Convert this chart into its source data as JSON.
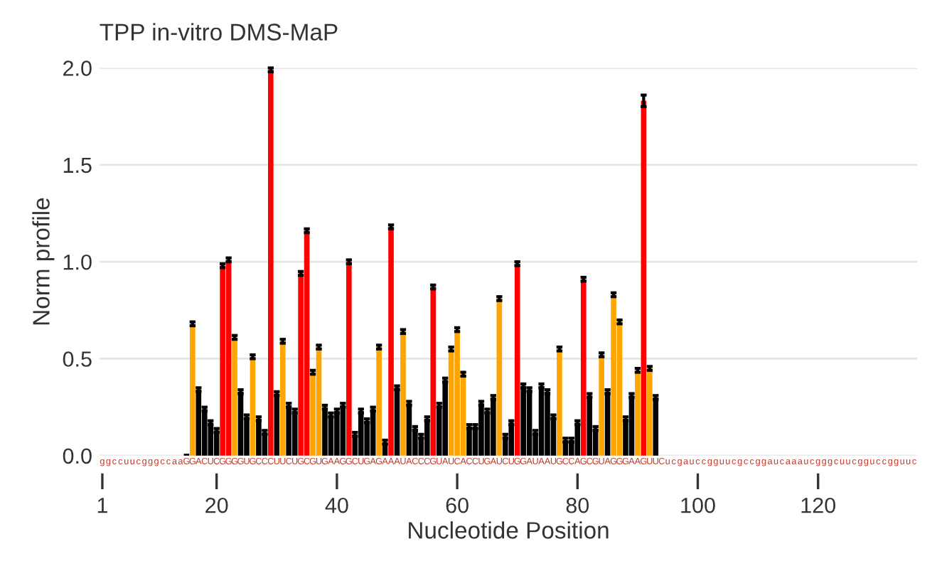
{
  "chart_data": {
    "type": "bar",
    "title": "TPP in-vitro DMS-MaP",
    "x2label": "Nucleotide Position",
    "ylabel": "Norm profile",
    "categories": [
      "g",
      "g",
      "c",
      "c",
      "u",
      "u",
      "c",
      "g",
      "g",
      "g",
      "c",
      "c",
      "a",
      "a",
      "G",
      "G",
      "A",
      "C",
      "U",
      "C",
      "G",
      "G",
      "G",
      "G",
      "U",
      "G",
      "C",
      "C",
      "C",
      "U",
      "U",
      "C",
      "U",
      "G",
      "C",
      "G",
      "U",
      "G",
      "A",
      "A",
      "G",
      "G",
      "C",
      "U",
      "G",
      "A",
      "G",
      "A",
      "A",
      "A",
      "U",
      "A",
      "C",
      "C",
      "C",
      "G",
      "U",
      "A",
      "U",
      "C",
      "A",
      "C",
      "C",
      "U",
      "G",
      "A",
      "U",
      "C",
      "U",
      "G",
      "G",
      "A",
      "U",
      "A",
      "A",
      "U",
      "G",
      "C",
      "C",
      "A",
      "G",
      "C",
      "G",
      "U",
      "A",
      "G",
      "G",
      "G",
      "A",
      "A",
      "G",
      "U",
      "U",
      "C",
      "u",
      "c",
      "g",
      "a",
      "u",
      "c",
      "c",
      "g",
      "g",
      "u",
      "u",
      "c",
      "g",
      "c",
      "c",
      "g",
      "g",
      "a",
      "u",
      "c",
      "a",
      "a",
      "a",
      "u",
      "c",
      "g",
      "g",
      "g",
      "c",
      "u",
      "u",
      "c",
      "g",
      "g",
      "u",
      "c",
      "c",
      "g",
      "g",
      "u",
      "u",
      "c"
    ],
    "values": [
      null,
      null,
      null,
      null,
      null,
      null,
      null,
      null,
      null,
      null,
      null,
      null,
      null,
      null,
      0.01,
      0.68,
      0.34,
      0.24,
      0.17,
      0.13,
      0.98,
      1.01,
      0.61,
      0.33,
      0.2,
      0.51,
      0.19,
      0.12,
      1.99,
      0.32,
      0.59,
      0.26,
      0.23,
      0.94,
      1.16,
      0.43,
      0.56,
      0.25,
      0.21,
      0.23,
      0.26,
      1.0,
      0.11,
      0.23,
      0.18,
      0.24,
      0.56,
      0.07,
      1.18,
      0.35,
      0.64,
      0.27,
      0.14,
      0.1,
      0.19,
      0.87,
      0.26,
      0.39,
      0.55,
      0.65,
      0.42,
      0.15,
      0.15,
      0.27,
      0.23,
      0.3,
      0.81,
      0.1,
      0.17,
      0.99,
      0.36,
      0.34,
      0.12,
      0.36,
      0.33,
      0.2,
      0.55,
      0.08,
      0.08,
      0.17,
      0.91,
      0.31,
      0.14,
      0.52,
      0.33,
      0.83,
      0.69,
      0.19,
      0.31,
      0.44,
      1.83,
      0.45,
      0.3,
      null,
      null,
      null,
      null,
      null,
      null,
      null,
      null,
      null,
      null,
      null,
      null,
      null,
      null,
      null,
      null,
      null,
      null,
      null,
      null,
      null,
      null,
      null,
      null,
      null,
      null,
      null,
      null,
      null,
      null,
      null,
      null,
      null,
      null,
      null,
      null,
      null,
      null,
      null,
      null,
      null,
      null,
      null
    ],
    "errors": [
      null,
      null,
      null,
      null,
      null,
      null,
      null,
      null,
      null,
      null,
      null,
      null,
      null,
      null,
      null,
      0.01,
      0.01,
      0.01,
      0.01,
      0.01,
      0.01,
      0.01,
      0.01,
      0.01,
      0.01,
      0.01,
      0.01,
      0.01,
      0.01,
      0.01,
      0.01,
      0.01,
      0.01,
      0.01,
      0.01,
      0.01,
      0.01,
      0.01,
      0.01,
      0.01,
      0.01,
      0.01,
      0.01,
      0.01,
      0.01,
      0.01,
      0.01,
      0.01,
      0.01,
      0.01,
      0.01,
      0.01,
      0.01,
      0.01,
      0.01,
      0.01,
      0.01,
      0.01,
      0.01,
      0.01,
      0.01,
      0.01,
      0.01,
      0.01,
      0.01,
      0.01,
      0.01,
      0.01,
      0.01,
      0.01,
      0.01,
      0.01,
      0.01,
      0.01,
      0.01,
      0.01,
      0.01,
      0.01,
      0.01,
      0.01,
      0.01,
      0.01,
      0.01,
      0.01,
      0.01,
      0.01,
      0.01,
      0.01,
      0.01,
      0.01,
      0.03,
      0.01,
      0.01,
      null,
      null,
      null,
      null,
      null,
      null,
      null,
      null,
      null,
      null,
      null,
      null,
      null,
      null,
      null,
      null,
      null,
      null,
      null,
      null,
      null,
      null,
      null,
      null,
      null,
      null,
      null,
      null,
      null,
      null,
      null,
      null,
      null,
      null,
      null,
      null,
      null,
      null,
      null,
      null,
      null,
      null,
      null
    ],
    "colors": [
      "#000000",
      "#000000",
      "#000000",
      "#000000",
      "#000000",
      "#000000",
      "#000000",
      "#000000",
      "#000000",
      "#000000",
      "#000000",
      "#000000",
      "#000000",
      "#000000",
      "#000000",
      "#ffa500",
      "#000000",
      "#000000",
      "#000000",
      "#000000",
      "#ff0000",
      "#ff0000",
      "#ffa500",
      "#000000",
      "#000000",
      "#ffa500",
      "#000000",
      "#000000",
      "#ff0000",
      "#000000",
      "#ffa500",
      "#000000",
      "#000000",
      "#ff0000",
      "#ff0000",
      "#ffa500",
      "#ffa500",
      "#000000",
      "#000000",
      "#000000",
      "#000000",
      "#ff0000",
      "#000000",
      "#000000",
      "#000000",
      "#000000",
      "#ffa500",
      "#000000",
      "#ff0000",
      "#000000",
      "#ffa500",
      "#000000",
      "#000000",
      "#000000",
      "#000000",
      "#ff0000",
      "#000000",
      "#000000",
      "#ffa500",
      "#ffa500",
      "#ffa500",
      "#000000",
      "#000000",
      "#000000",
      "#000000",
      "#000000",
      "#ffa500",
      "#000000",
      "#000000",
      "#ff0000",
      "#000000",
      "#000000",
      "#000000",
      "#000000",
      "#000000",
      "#000000",
      "#ffa500",
      "#000000",
      "#000000",
      "#000000",
      "#ff0000",
      "#000000",
      "#000000",
      "#ffa500",
      "#000000",
      "#ffa500",
      "#ffa500",
      "#000000",
      "#000000",
      "#ffa500",
      "#ff0000",
      "#ffa500",
      "#000000",
      "#000000",
      "#000000",
      "#000000",
      "#000000",
      "#000000",
      "#000000",
      "#000000",
      "#000000",
      "#000000",
      "#000000",
      "#000000",
      "#000000",
      "#000000",
      "#000000",
      "#000000",
      "#000000",
      "#000000",
      "#000000",
      "#000000",
      "#000000",
      "#000000",
      "#000000",
      "#000000",
      "#000000",
      "#000000",
      "#000000",
      "#000000",
      "#000000",
      "#000000",
      "#000000",
      "#000000",
      "#000000",
      "#000000",
      "#000000",
      "#000000",
      "#000000",
      "#000000",
      "#000000",
      "#000000",
      "#000000",
      "#000000",
      "#000000",
      "#000000"
    ],
    "x2lim": [
      0.5,
      136.5
    ],
    "x2ticks": [
      1,
      20,
      40,
      60,
      80,
      100,
      120
    ],
    "ylim": [
      0,
      2.0
    ],
    "yticks": [
      {
        "value": 0,
        "label": "0.0"
      },
      {
        "value": 0.5,
        "label": "0.5"
      },
      {
        "value": 1,
        "label": "1.0"
      },
      {
        "value": 1.5,
        "label": "1.5"
      },
      {
        "value": 2,
        "label": "2.0"
      }
    ],
    "grid": "y"
  }
}
